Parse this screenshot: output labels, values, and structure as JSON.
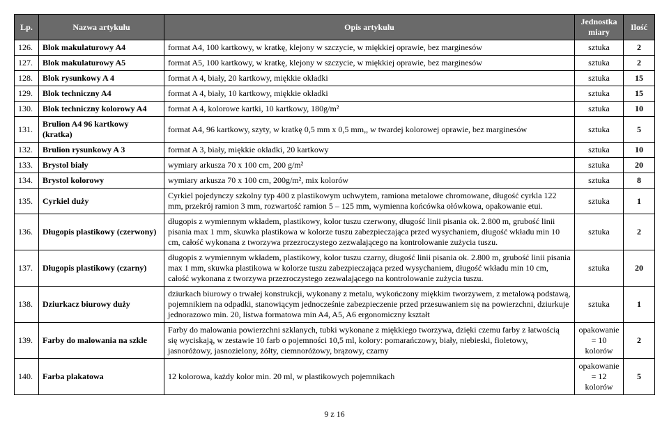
{
  "header": {
    "lp": "Lp.",
    "name": "Nazwa artykułu",
    "desc": "Opis artykułu",
    "unit": "Jednostka miary",
    "qty": "Ilość"
  },
  "rows": [
    {
      "lp": "126.",
      "name": "Blok makulaturowy A4",
      "desc": "format A4, 100 kartkowy, w kratkę, klejony w szczycie, w miękkiej oprawie, bez marginesów",
      "unit": "sztuka",
      "qty": "2"
    },
    {
      "lp": "127.",
      "name": "Blok makulaturowy A5",
      "desc": "format A5, 100 kartkowy, w kratkę, klejony w szczycie, w miękkiej oprawie, bez marginesów",
      "unit": "sztuka",
      "qty": "2"
    },
    {
      "lp": "128.",
      "name": "Blok rysunkowy A 4",
      "desc": "format A 4, biały, 20 kartkowy, miękkie okładki",
      "unit": "sztuka",
      "qty": "15"
    },
    {
      "lp": "129.",
      "name": "Blok techniczny A4",
      "desc": "format A 4, biały, 10 kartkowy, miękkie okładki",
      "unit": "sztuka",
      "qty": "15"
    },
    {
      "lp": "130.",
      "name": "Blok techniczny kolorowy A4",
      "desc": "format A 4, kolorowe kartki, 10 kartkowy, 180g/m²",
      "unit": "sztuka",
      "qty": "10"
    },
    {
      "lp": "131.",
      "name": "Brulion A4 96 kartkowy (kratka)",
      "desc": "format A4, 96 kartkowy, szyty, w kratkę 0,5 mm x 0,5 mm,, w twardej kolorowej oprawie, bez marginesów",
      "unit": "sztuka",
      "qty": "5"
    },
    {
      "lp": "132.",
      "name": "Brulion rysunkowy A 3",
      "desc": "format A 3, biały, miękkie okładki, 20 kartkowy",
      "unit": "sztuka",
      "qty": "10"
    },
    {
      "lp": "133.",
      "name": "Brystol biały",
      "desc": "wymiary arkusza 70 x 100 cm, 200 g/m²",
      "unit": "sztuka",
      "qty": "20"
    },
    {
      "lp": "134.",
      "name": "Brystol kolorowy",
      "desc": "wymiary arkusza 70 x 100 cm, 200g/m², mix kolorów",
      "unit": "sztuka",
      "qty": "8"
    },
    {
      "lp": "135.",
      "name": "Cyrkiel duży",
      "desc": "Cyrkiel pojedynczy szkolny typ 400 z plastikowym uchwytem, ramiona metalowe chromowane, długość cyrkla 122 mm, przekrój ramion 3 mm, rozwartość ramion 5 – 125 mm, wymienna końcówka ołówkowa, opakowanie etui.",
      "unit": "sztuka",
      "qty": "1"
    },
    {
      "lp": "136.",
      "name": "Długopis plastikowy (czerwony)",
      "desc": "długopis z wymiennym wkładem, plastikowy, kolor tuszu czerwony, długość linii pisania ok. 2.800 m, grubość linii pisania max 1 mm,  skuwka plastikowa w kolorze tuszu zabezpieczająca przed wysychaniem, długość wkładu min 10 cm, całość wykonana z tworzywa przezroczystego zezwalającego na kontrolowanie zużycia tuszu.",
      "unit": "sztuka",
      "qty": "2"
    },
    {
      "lp": "137.",
      "name": "Długopis plastikowy (czarny)",
      "desc": "długopis z wymiennym wkładem, plastikowy, kolor tuszu czarny, długość linii pisania ok. 2.800 m, grubość linii pisania max 1 mm,  skuwka plastikowa w kolorze tuszu zabezpieczająca przed wysychaniem, długość wkładu min 10 cm, całość wykonana z tworzywa przezroczystego zezwalającego na kontrolowanie zużycia tuszu.",
      "unit": "sztuka",
      "qty": "20"
    },
    {
      "lp": "138.",
      "name": "Dziurkacz biurowy duży",
      "desc": "dziurkach biurowy o trwałej konstrukcji, wykonany z metalu, wykończony miękkim tworzywem, z metalową podstawą, pojemnikiem na odpadki, stanowiącym jednocześnie zabezpieczenie przed przesuwaniem się na powierzchni, dziurkuje jednorazowo min. 20, listwa formatowa min A4, A5, A6 ergonomiczny kształt",
      "unit": "sztuka",
      "qty": "1"
    },
    {
      "lp": "139.",
      "name": "Farby do malowania na szkle",
      "desc": "Farby do malowania powierzchni szklanych, tubki wykonane z miękkiego tworzywa, dzięki czemu farby z łatwością się wyciskają, w zestawie 10 farb o pojemności 10,5 ml, kolory: pomarańczowy, biały, niebieski, fioletowy, jasnoróżowy, jasnozielony, żółty, ciemnoróżowy, brązowy, czarny",
      "unit": "opakowanie = 10 kolorów",
      "qty": "2"
    },
    {
      "lp": "140.",
      "name": "Farba plakatowa",
      "desc": "12 kolorowa, każdy kolor min. 20 ml, w plastikowych pojemnikach",
      "unit": "opakowanie = 12 kolorów",
      "qty": "5"
    }
  ],
  "pageNum": "9 z 16"
}
